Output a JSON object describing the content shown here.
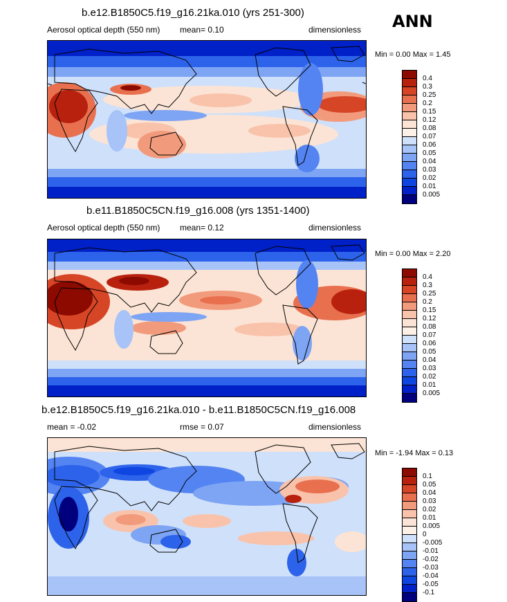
{
  "season": "ANN",
  "colors": {
    "abs": [
      "#00007f",
      "#0020c8",
      "#0f45e0",
      "#2d63ea",
      "#5484f2",
      "#7ea4f4",
      "#a7c3f7",
      "#cfe0fa",
      "#fbe4d5",
      "#f9c3ab",
      "#f29b7c",
      "#e8704f",
      "#d64526",
      "#b8210e",
      "#8c0a00"
    ],
    "diff": [
      "#00007f",
      "#0020c8",
      "#0f45e0",
      "#2d63ea",
      "#5484f2",
      "#7ea4f4",
      "#a7c3f7",
      "#cfe0fa",
      "#fbe4d5",
      "#f9c3ab",
      "#f29b7c",
      "#e8704f",
      "#d64526",
      "#b8210e",
      "#8c0a00"
    ]
  },
  "panels": [
    {
      "title": "b.e12.B1850C5.f19_g16.21ka.010 (yrs 251-300)",
      "var": "Aerosol optical depth (550 nm)",
      "stat": "mean=  0.10",
      "units": "dimensionless",
      "minmax": "Min =   0.00 Max =   1.45",
      "levels": [
        "0.4",
        "0.3",
        "0.25",
        "0.2",
        "0.15",
        "0.12",
        "0.08",
        "0.07",
        "0.06",
        "0.05",
        "0.04",
        "0.03",
        "0.02",
        "0.01",
        "0.005"
      ]
    },
    {
      "title": "b.e11.B1850C5CN.f19_g16.008 (yrs 1351-1400)",
      "var": "Aerosol optical depth (550 nm)",
      "stat": "mean=  0.12",
      "units": "dimensionless",
      "minmax": "Min =   0.00 Max =   2.20",
      "levels": [
        "0.4",
        "0.3",
        "0.25",
        "0.2",
        "0.15",
        "0.12",
        "0.08",
        "0.07",
        "0.06",
        "0.05",
        "0.04",
        "0.03",
        "0.02",
        "0.01",
        "0.005"
      ]
    },
    {
      "title": "b.e12.B1850C5.f19_g16.21ka.010 - b.e11.B1850C5CN.f19_g16.008",
      "var": "mean =  -0.02",
      "stat": "rmse =   0.07",
      "units": "dimensionless",
      "minmax": "Min =  -1.94 Max =   0.13",
      "levels": [
        "0.1",
        "0.05",
        "0.04",
        "0.03",
        "0.02",
        "0.01",
        "0.005",
        "0",
        "-0.005",
        "-0.01",
        "-0.02",
        "-0.03",
        "-0.04",
        "-0.05",
        "-0.1"
      ]
    }
  ]
}
